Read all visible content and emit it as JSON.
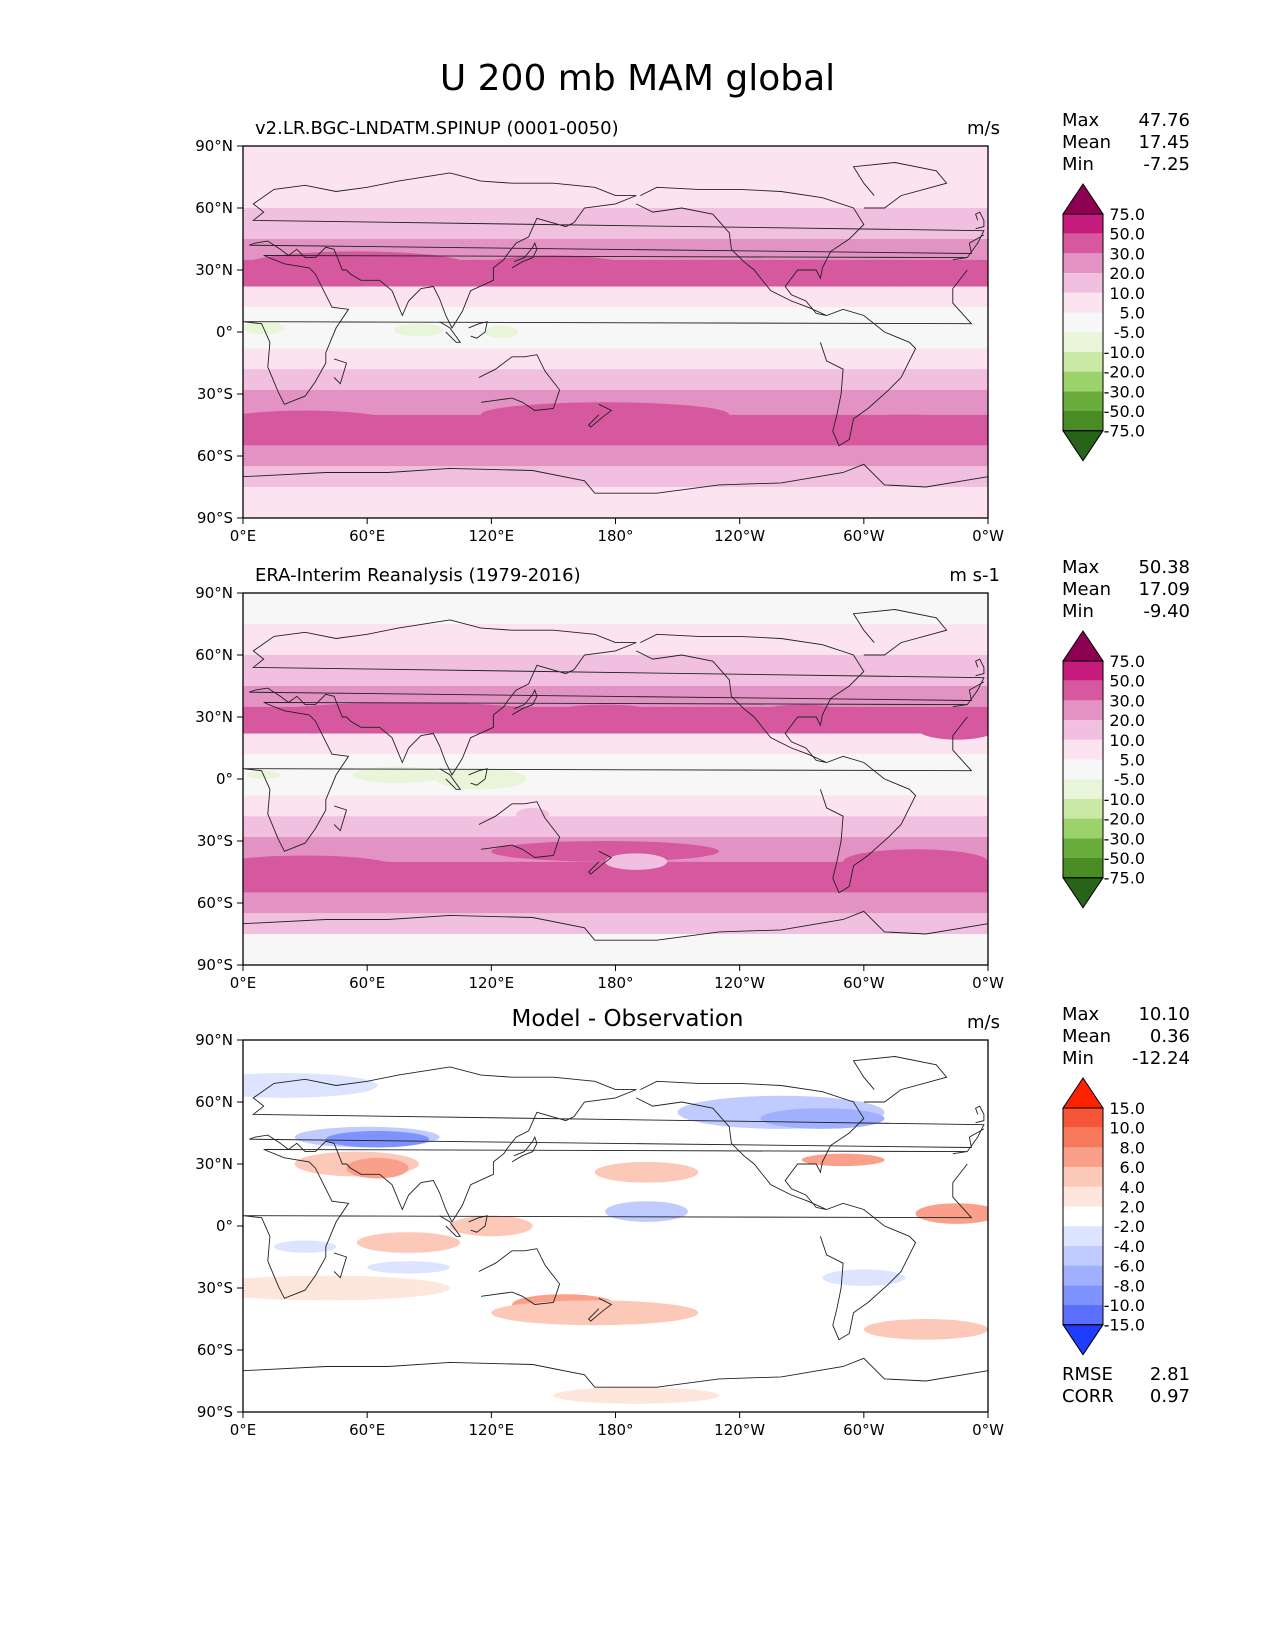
{
  "title": "U 200 mb MAM global",
  "lon_ticks": [
    "0°E",
    "60°E",
    "120°E",
    "180°",
    "120°W",
    "60°W",
    "0°W"
  ],
  "lat_ticks": [
    "90°N",
    "60°N",
    "30°N",
    "0°",
    "30°S",
    "60°S",
    "90°S"
  ],
  "panels": [
    {
      "title": "v2.LR.BGC-LNDATM.SPINUP (0001-0050)",
      "title_position": "left",
      "units": "m/s",
      "stats": [
        {
          "label": "Max",
          "value": "47.76"
        },
        {
          "label": "Mean",
          "value": "17.45"
        },
        {
          "label": "Min",
          "value": "-7.25"
        }
      ],
      "colorbar_ticks": [
        "75.0",
        "50.0",
        "30.0",
        "20.0",
        "10.0",
        "5.0",
        "-5.0",
        "-10.0",
        "-20.0",
        "-30.0",
        "-50.0",
        "-75.0"
      ],
      "colorbar_colors": [
        "#8e0152",
        "#c51b7d",
        "#d6589e",
        "#e393c3",
        "#f1bfdf",
        "#fbe3f0",
        "#f7f7f7",
        "#e9f5d9",
        "#c9e8a5",
        "#9cd26a",
        "#6aad3a",
        "#4a8c24",
        "#276419"
      ]
    },
    {
      "title": "ERA-Interim Reanalysis (1979-2016)",
      "title_position": "left",
      "units": "m s-1",
      "stats": [
        {
          "label": "Max",
          "value": "50.38"
        },
        {
          "label": "Mean",
          "value": "17.09"
        },
        {
          "label": "Min",
          "value": "-9.40"
        }
      ],
      "colorbar_ticks": [
        "75.0",
        "50.0",
        "30.0",
        "20.0",
        "10.0",
        "5.0",
        "-5.0",
        "-10.0",
        "-20.0",
        "-30.0",
        "-50.0",
        "-75.0"
      ],
      "colorbar_colors": [
        "#8e0152",
        "#c51b7d",
        "#d6589e",
        "#e393c3",
        "#f1bfdf",
        "#fbe3f0",
        "#f7f7f7",
        "#e9f5d9",
        "#c9e8a5",
        "#9cd26a",
        "#6aad3a",
        "#4a8c24",
        "#276419"
      ]
    },
    {
      "title": "Model - Observation",
      "title_position": "center",
      "units": "m/s",
      "stats": [
        {
          "label": "Max",
          "value": "10.10"
        },
        {
          "label": "Mean",
          "value": "0.36"
        },
        {
          "label": "Min",
          "value": "-12.24"
        }
      ],
      "colorbar_ticks": [
        "15.0",
        "10.0",
        "8.0",
        "6.0",
        "4.0",
        "2.0",
        "-2.0",
        "-4.0",
        "-6.0",
        "-8.0",
        "-10.0",
        "-15.0"
      ],
      "colorbar_colors": [
        "#ff2200",
        "#f6553a",
        "#f8785c",
        "#faa08a",
        "#fcc8b8",
        "#fee6dc",
        "#ffffff",
        "#dde4ff",
        "#c0ccff",
        "#a0b0ff",
        "#7f93ff",
        "#5b6fff",
        "#1e3dff"
      ],
      "bottom_stats": [
        {
          "label": "RMSE",
          "value": "2.81"
        },
        {
          "label": "CORR",
          "value": "0.97"
        }
      ]
    }
  ],
  "chart_data": [
    {
      "type": "heatmap",
      "title": "v2.LR.BGC-LNDATM.SPINUP (0001-0050)",
      "units": "m/s",
      "x_range": [
        0,
        360
      ],
      "y_range": [
        -90,
        90
      ],
      "levels": [
        -75,
        -50,
        -30,
        -20,
        -10,
        -5,
        5,
        10,
        20,
        30,
        50,
        75
      ],
      "summary": {
        "max": 47.76,
        "mean": 17.45,
        "min": -7.25
      },
      "zonal_profile": {
        "lat": [
          90,
          75,
          60,
          45,
          35,
          30,
          20,
          10,
          0,
          -10,
          -20,
          -30,
          -40,
          -50,
          -60,
          -75,
          -90
        ],
        "u": [
          1,
          4,
          12,
          22,
          32,
          31,
          12,
          2,
          0,
          4,
          15,
          24,
          31,
          30,
          18,
          4,
          1
        ]
      }
    },
    {
      "type": "heatmap",
      "title": "ERA-Interim Reanalysis (1979-2016)",
      "units": "m s-1",
      "x_range": [
        0,
        360
      ],
      "y_range": [
        -90,
        90
      ],
      "levels": [
        -75,
        -50,
        -30,
        -20,
        -10,
        -5,
        5,
        10,
        20,
        30,
        50,
        75
      ],
      "summary": {
        "max": 50.38,
        "mean": 17.09,
        "min": -9.4
      },
      "zonal_profile": {
        "lat": [
          90,
          75,
          60,
          45,
          35,
          30,
          20,
          10,
          0,
          -10,
          -20,
          -30,
          -40,
          -50,
          -60,
          -75,
          -90
        ],
        "u": [
          1,
          5,
          12,
          23,
          31,
          30,
          11,
          1,
          -2,
          5,
          16,
          25,
          30,
          28,
          17,
          4,
          1
        ]
      }
    },
    {
      "type": "heatmap",
      "title": "Model - Observation",
      "units": "m/s",
      "x_range": [
        0,
        360
      ],
      "y_range": [
        -90,
        90
      ],
      "levels": [
        -15,
        -10,
        -8,
        -6,
        -4,
        -2,
        2,
        4,
        6,
        8,
        10,
        15
      ],
      "summary": {
        "max": 10.1,
        "mean": 0.36,
        "min": -12.24,
        "rmse": 2.81,
        "corr": 0.97
      }
    }
  ]
}
